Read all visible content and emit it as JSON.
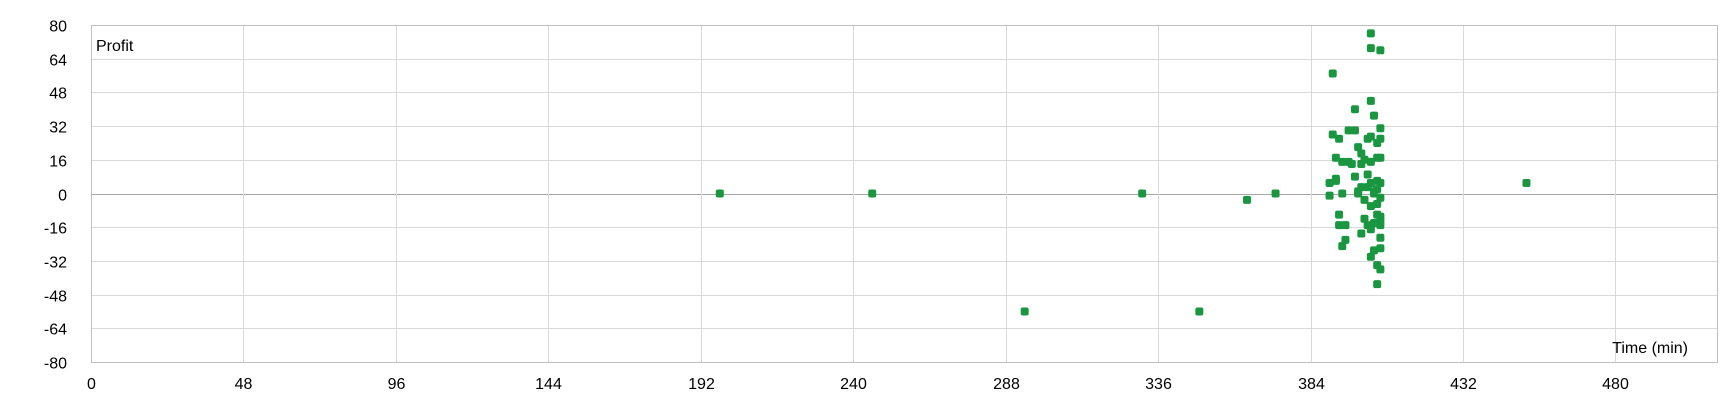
{
  "chart_data": {
    "type": "scatter",
    "title": "",
    "ylabel": "Profit",
    "xlabel": "Time (min)",
    "xlim": [
      0,
      512
    ],
    "ylim": [
      -80,
      80
    ],
    "xticks": [
      "0",
      "48",
      "96",
      "144",
      "192",
      "240",
      "288",
      "336",
      "384",
      "432",
      "480"
    ],
    "yticks": [
      "80",
      "64",
      "48",
      "32",
      "16",
      "0",
      "-16",
      "-32",
      "-48",
      "-64",
      "-80"
    ],
    "grid": true,
    "marker_color": "#1a9641",
    "series": [
      {
        "points": [
          [
            198,
            0
          ],
          [
            246,
            0
          ],
          [
            294,
            -56
          ],
          [
            331,
            0
          ],
          [
            349,
            -56
          ],
          [
            364,
            -3
          ],
          [
            373,
            0
          ],
          [
            390,
            -1
          ],
          [
            390,
            5
          ],
          [
            391,
            57
          ],
          [
            391,
            28
          ],
          [
            392,
            6
          ],
          [
            392,
            17
          ],
          [
            392,
            7
          ],
          [
            393,
            -15
          ],
          [
            393,
            26
          ],
          [
            393,
            -10
          ],
          [
            394,
            15
          ],
          [
            394,
            -25
          ],
          [
            394,
            0
          ],
          [
            395,
            -22
          ],
          [
            395,
            -15
          ],
          [
            396,
            30
          ],
          [
            396,
            15
          ],
          [
            397,
            14
          ],
          [
            398,
            40
          ],
          [
            398,
            30
          ],
          [
            398,
            8
          ],
          [
            399,
            22
          ],
          [
            399,
            1
          ],
          [
            399,
            0
          ],
          [
            400,
            19
          ],
          [
            400,
            14
          ],
          [
            400,
            3
          ],
          [
            400,
            -19
          ],
          [
            401,
            16
          ],
          [
            401,
            -3
          ],
          [
            401,
            -12
          ],
          [
            402,
            26
          ],
          [
            402,
            9
          ],
          [
            402,
            3
          ],
          [
            402,
            -15
          ],
          [
            403,
            44
          ],
          [
            403,
            27
          ],
          [
            403,
            15
          ],
          [
            403,
            5
          ],
          [
            403,
            -6
          ],
          [
            403,
            -17
          ],
          [
            403,
            -30
          ],
          [
            403,
            76
          ],
          [
            403,
            69
          ],
          [
            404,
            37
          ],
          [
            404,
            1
          ],
          [
            404,
            0
          ],
          [
            404,
            -14
          ],
          [
            404,
            -27
          ],
          [
            405,
            24
          ],
          [
            405,
            17
          ],
          [
            405,
            6
          ],
          [
            405,
            2
          ],
          [
            405,
            -5
          ],
          [
            405,
            -10
          ],
          [
            405,
            -34
          ],
          [
            405,
            -43
          ],
          [
            406,
            68
          ],
          [
            406,
            31
          ],
          [
            406,
            26
          ],
          [
            406,
            17
          ],
          [
            406,
            5
          ],
          [
            406,
            -2
          ],
          [
            406,
            -13
          ],
          [
            406,
            -21
          ],
          [
            406,
            -26
          ],
          [
            406,
            -36
          ],
          [
            406,
            -11
          ],
          [
            406,
            -15
          ],
          [
            452,
            5
          ]
        ]
      }
    ]
  }
}
